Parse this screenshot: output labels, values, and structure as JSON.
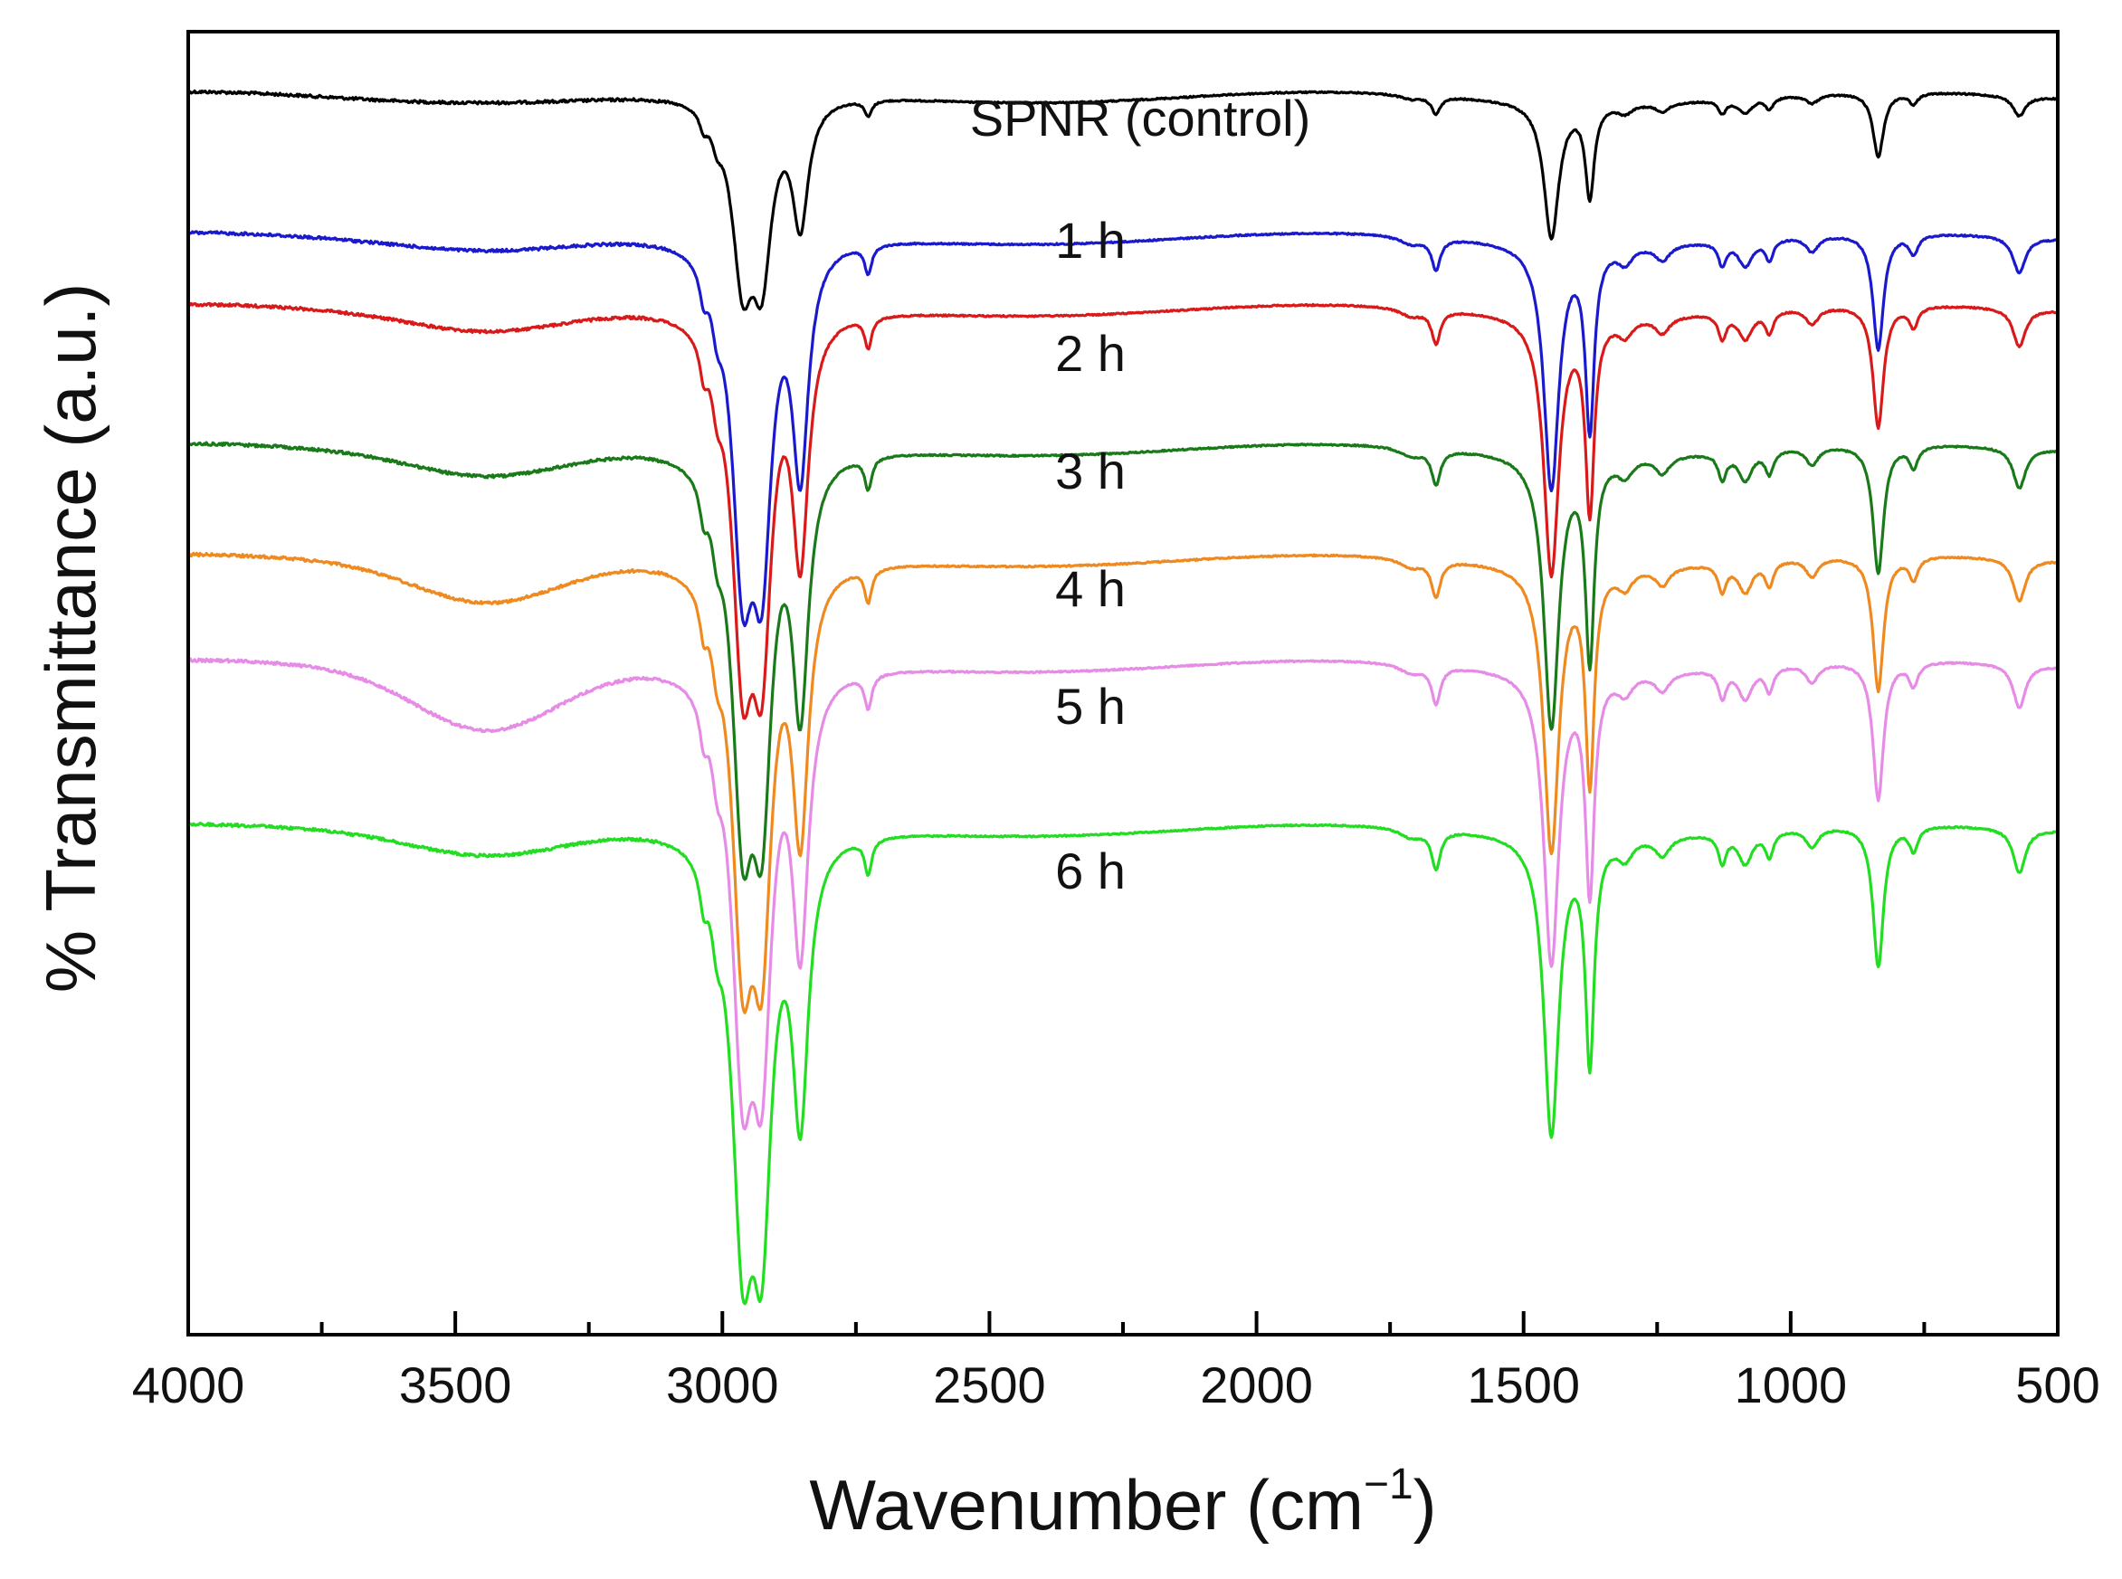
{
  "chart_data": {
    "type": "line",
    "xlabel": "Wavenumber (cm",
    "xlabel_superscript": "−1",
    "xlabel_suffix": ")",
    "ylabel": "% Transmittance (a.u.)",
    "xlim": [
      4000,
      500
    ],
    "x_reversed": true,
    "x_ticks": [
      4000,
      3500,
      3000,
      2500,
      2000,
      1500,
      1000,
      500
    ],
    "y_tick_labels": false,
    "legend": "none",
    "grid": false,
    "series": [
      {
        "name": "SPNR (control)",
        "color": "#000000",
        "baseline": 0.05,
        "depth": 1.0,
        "oh": 0.0
      },
      {
        "name": "1 h",
        "color": "#1a1acc",
        "baseline": 0.158,
        "depth": 1.8,
        "oh": 0.005
      },
      {
        "name": "2 h",
        "color": "#d91a1a",
        "baseline": 0.213,
        "depth": 1.9,
        "oh": 0.012
      },
      {
        "name": "3 h",
        "color": "#1a7a1a",
        "baseline": 0.32,
        "depth": 2.0,
        "oh": 0.016
      },
      {
        "name": "4 h",
        "color": "#ee8a20",
        "baseline": 0.405,
        "depth": 2.1,
        "oh": 0.028
      },
      {
        "name": "5 h",
        "color": "#e68be6",
        "baseline": 0.486,
        "depth": 2.15,
        "oh": 0.045
      },
      {
        "name": "6 h",
        "color": "#22dd22",
        "baseline": 0.612,
        "depth": 2.2,
        "oh": 0.015
      }
    ]
  }
}
